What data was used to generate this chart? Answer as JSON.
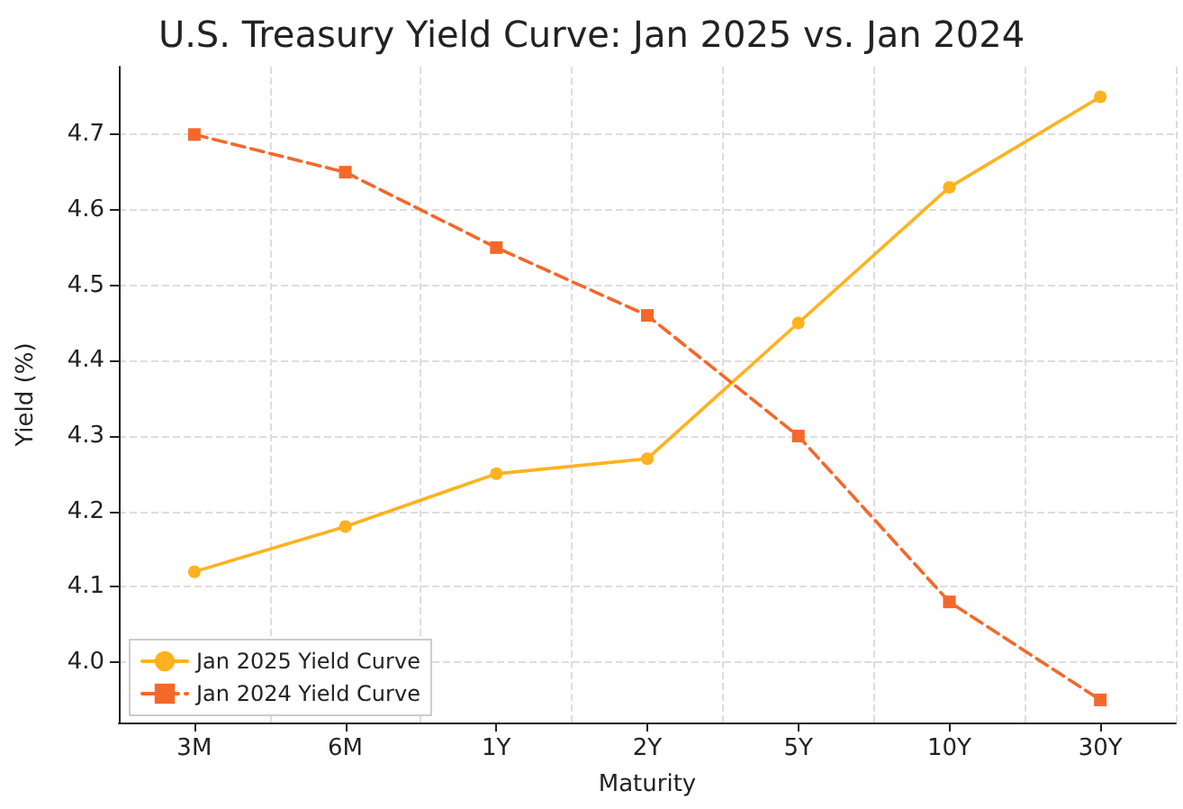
{
  "chart_data": {
    "type": "line",
    "title": "U.S. Treasury Yield Curve: Jan 2025 vs. Jan 2024",
    "xlabel": "Maturity",
    "ylabel": "Yield (%)",
    "categories": [
      "3M",
      "6M",
      "1Y",
      "2Y",
      "5Y",
      "10Y",
      "30Y"
    ],
    "series": [
      {
        "name": "Jan 2025 Yield Curve",
        "color": "#ffb21f",
        "marker": "circle",
        "line_style": "solid",
        "values": [
          4.12,
          4.18,
          4.25,
          4.27,
          4.45,
          4.63,
          4.75
        ]
      },
      {
        "name": "Jan 2024 Yield Curve",
        "color": "#f4682a",
        "marker": "square",
        "line_style": "dashed",
        "values": [
          4.7,
          4.65,
          4.55,
          4.46,
          4.3,
          4.08,
          3.95
        ]
      }
    ],
    "ylim": [
      3.92,
      4.79
    ],
    "yticks": [
      {
        "value": 4,
        "label": "4.0"
      },
      4.1,
      4.2,
      4.3,
      4.4,
      4.5,
      4.6,
      4.7
    ],
    "grid": true,
    "legend": "bottom left"
  }
}
